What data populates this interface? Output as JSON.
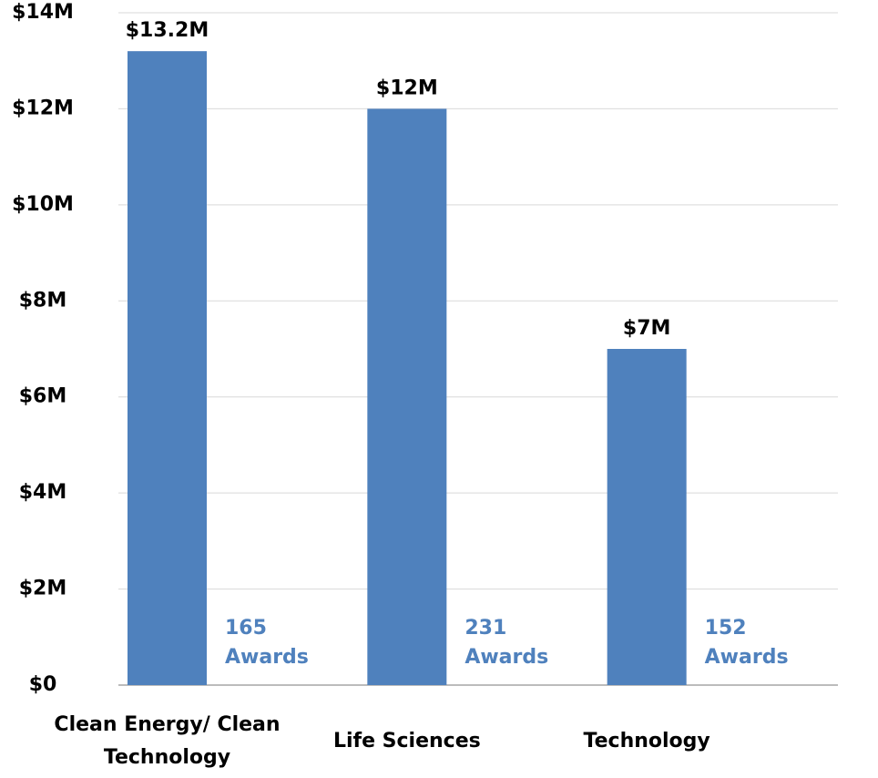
{
  "chart_data": {
    "type": "bar",
    "categories": [
      "Clean Energy/ Clean Technology",
      "Life Sciences",
      "Technology"
    ],
    "values": [
      13200000,
      12000000,
      7000000
    ],
    "value_labels": [
      "$13.2M",
      "$12M",
      "$7M"
    ],
    "annotations": [
      [
        "165",
        "Awards"
      ],
      [
        "231",
        "Awards"
      ],
      [
        "152",
        "Awards"
      ]
    ],
    "color": "#4f81bd",
    "ylim": [
      0,
      14000000
    ],
    "yticks": [
      {
        "value": 0,
        "label": "$0"
      },
      {
        "value": 2000000,
        "label": "$2M"
      },
      {
        "value": 4000000,
        "label": "$4M"
      },
      {
        "value": 6000000,
        "label": "$6M"
      },
      {
        "value": 8000000,
        "label": "$8M"
      },
      {
        "value": 10000000,
        "label": "$10M"
      },
      {
        "value": 12000000,
        "label": "$12M"
      },
      {
        "value": 14000000,
        "label": "$14M"
      }
    ],
    "grid": true
  }
}
